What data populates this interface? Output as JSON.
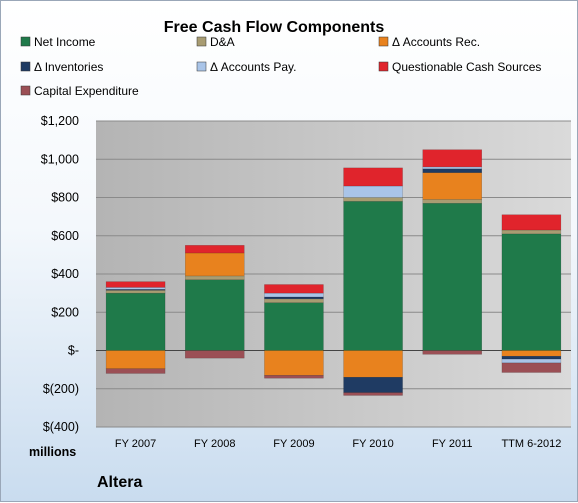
{
  "chart_data": {
    "type": "bar",
    "stacked": true,
    "title": "Free Cash Flow Components",
    "company": "Altera",
    "units": "millions",
    "categories": [
      "FY 2007",
      "FY 2008",
      "FY 2009",
      "FY 2010",
      "FY 2011",
      "TTM 6-2012"
    ],
    "ylim": [
      -400,
      1200
    ],
    "yticks": [
      -400,
      -200,
      0,
      200,
      400,
      600,
      800,
      1000,
      1200
    ],
    "ytick_labels": [
      "$(400)",
      "$(200)",
      "$-",
      "$200",
      "$400",
      "$600",
      "$800",
      "$1,000",
      "$1,200"
    ],
    "grid": true,
    "legend_position": "top",
    "series": [
      {
        "name": "Net Income",
        "color": "#1f7a4a",
        "values": [
          300,
          370,
          250,
          780,
          770,
          610
        ]
      },
      {
        "name": "D&A",
        "color": "#a89c72",
        "values": [
          15,
          20,
          20,
          20,
          20,
          20
        ]
      },
      {
        "name": "Δ Accounts Rec.",
        "color": "#e8821e",
        "values": [
          -95,
          120,
          -130,
          -140,
          140,
          -30
        ]
      },
      {
        "name": "Δ Inventories",
        "color": "#1f3b63",
        "values": [
          5,
          0,
          10,
          -80,
          20,
          -15
        ]
      },
      {
        "name": "Δ Accounts Pay.",
        "color": "#a9c4e8",
        "values": [
          10,
          0,
          20,
          60,
          10,
          -20
        ]
      },
      {
        "name": "Questionable Cash Sources",
        "color": "#e0242c",
        "values": [
          30,
          40,
          45,
          95,
          90,
          80
        ]
      },
      {
        "name": "Capital Expenditure",
        "color": "#9b4f55",
        "values": [
          -25,
          -40,
          -15,
          -15,
          -20,
          -50
        ]
      }
    ]
  }
}
